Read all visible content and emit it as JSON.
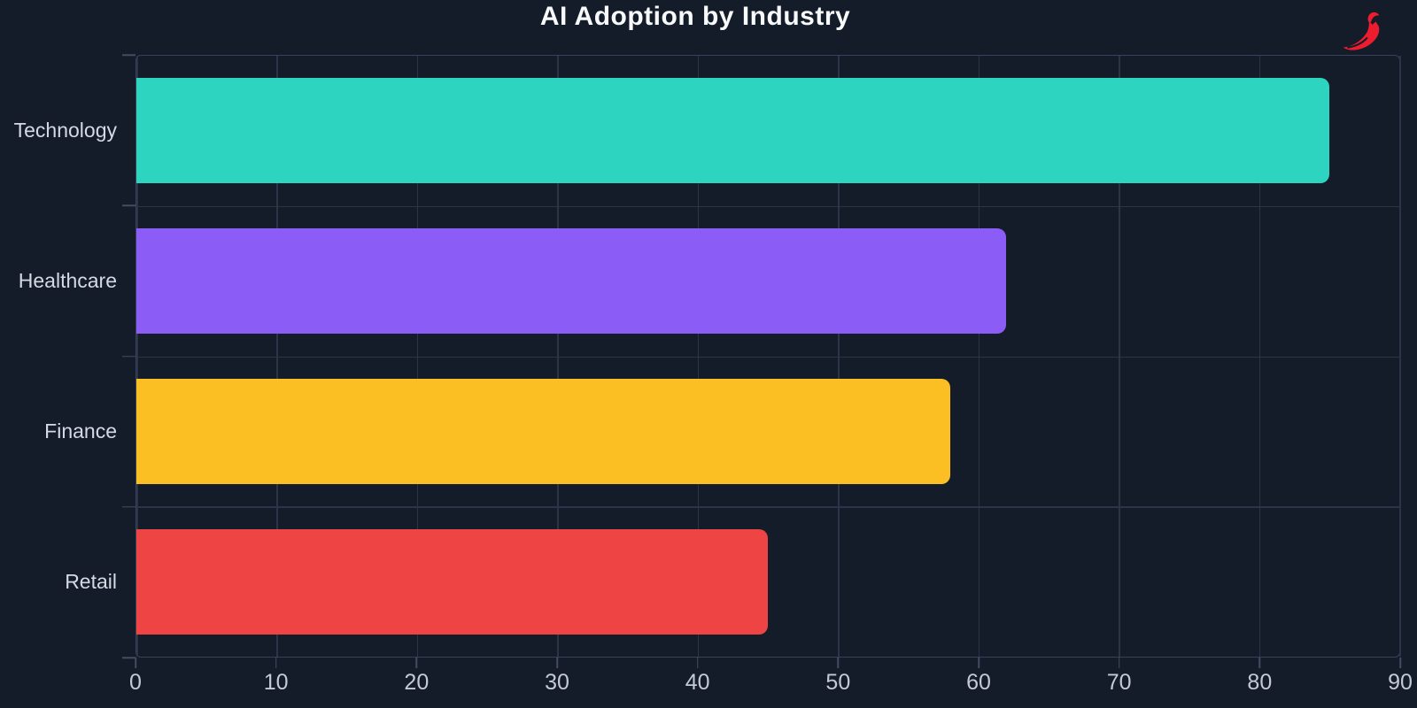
{
  "title": "AI Adoption by Industry",
  "brand": {
    "icon": "chili-pepper-icon",
    "color": "#ed1c2e"
  },
  "chart_data": {
    "type": "bar",
    "orientation": "horizontal",
    "title": "AI Adoption by Industry",
    "categories": [
      "Technology",
      "Healthcare",
      "Finance",
      "Retail"
    ],
    "values": [
      85,
      62,
      58,
      45
    ],
    "bar_colors": [
      "#2dd4bf",
      "#8b5cf6",
      "#fbbf24",
      "#ef4444"
    ],
    "xlabel": "",
    "ylabel": "",
    "xlim": [
      0,
      90
    ],
    "xticks": [
      0,
      10,
      20,
      30,
      40,
      50,
      60,
      70,
      80,
      90
    ],
    "grid": true,
    "legend": false,
    "plot_background": "#141b29"
  },
  "theme": {
    "background": "#141b29",
    "grid_color": "#2c3547",
    "border_color": "#38425a",
    "tick_color": "#434d60",
    "label_color": "#d4dae3",
    "tick_label_color": "#c3cad6",
    "title_color": "#f7f9fb"
  }
}
